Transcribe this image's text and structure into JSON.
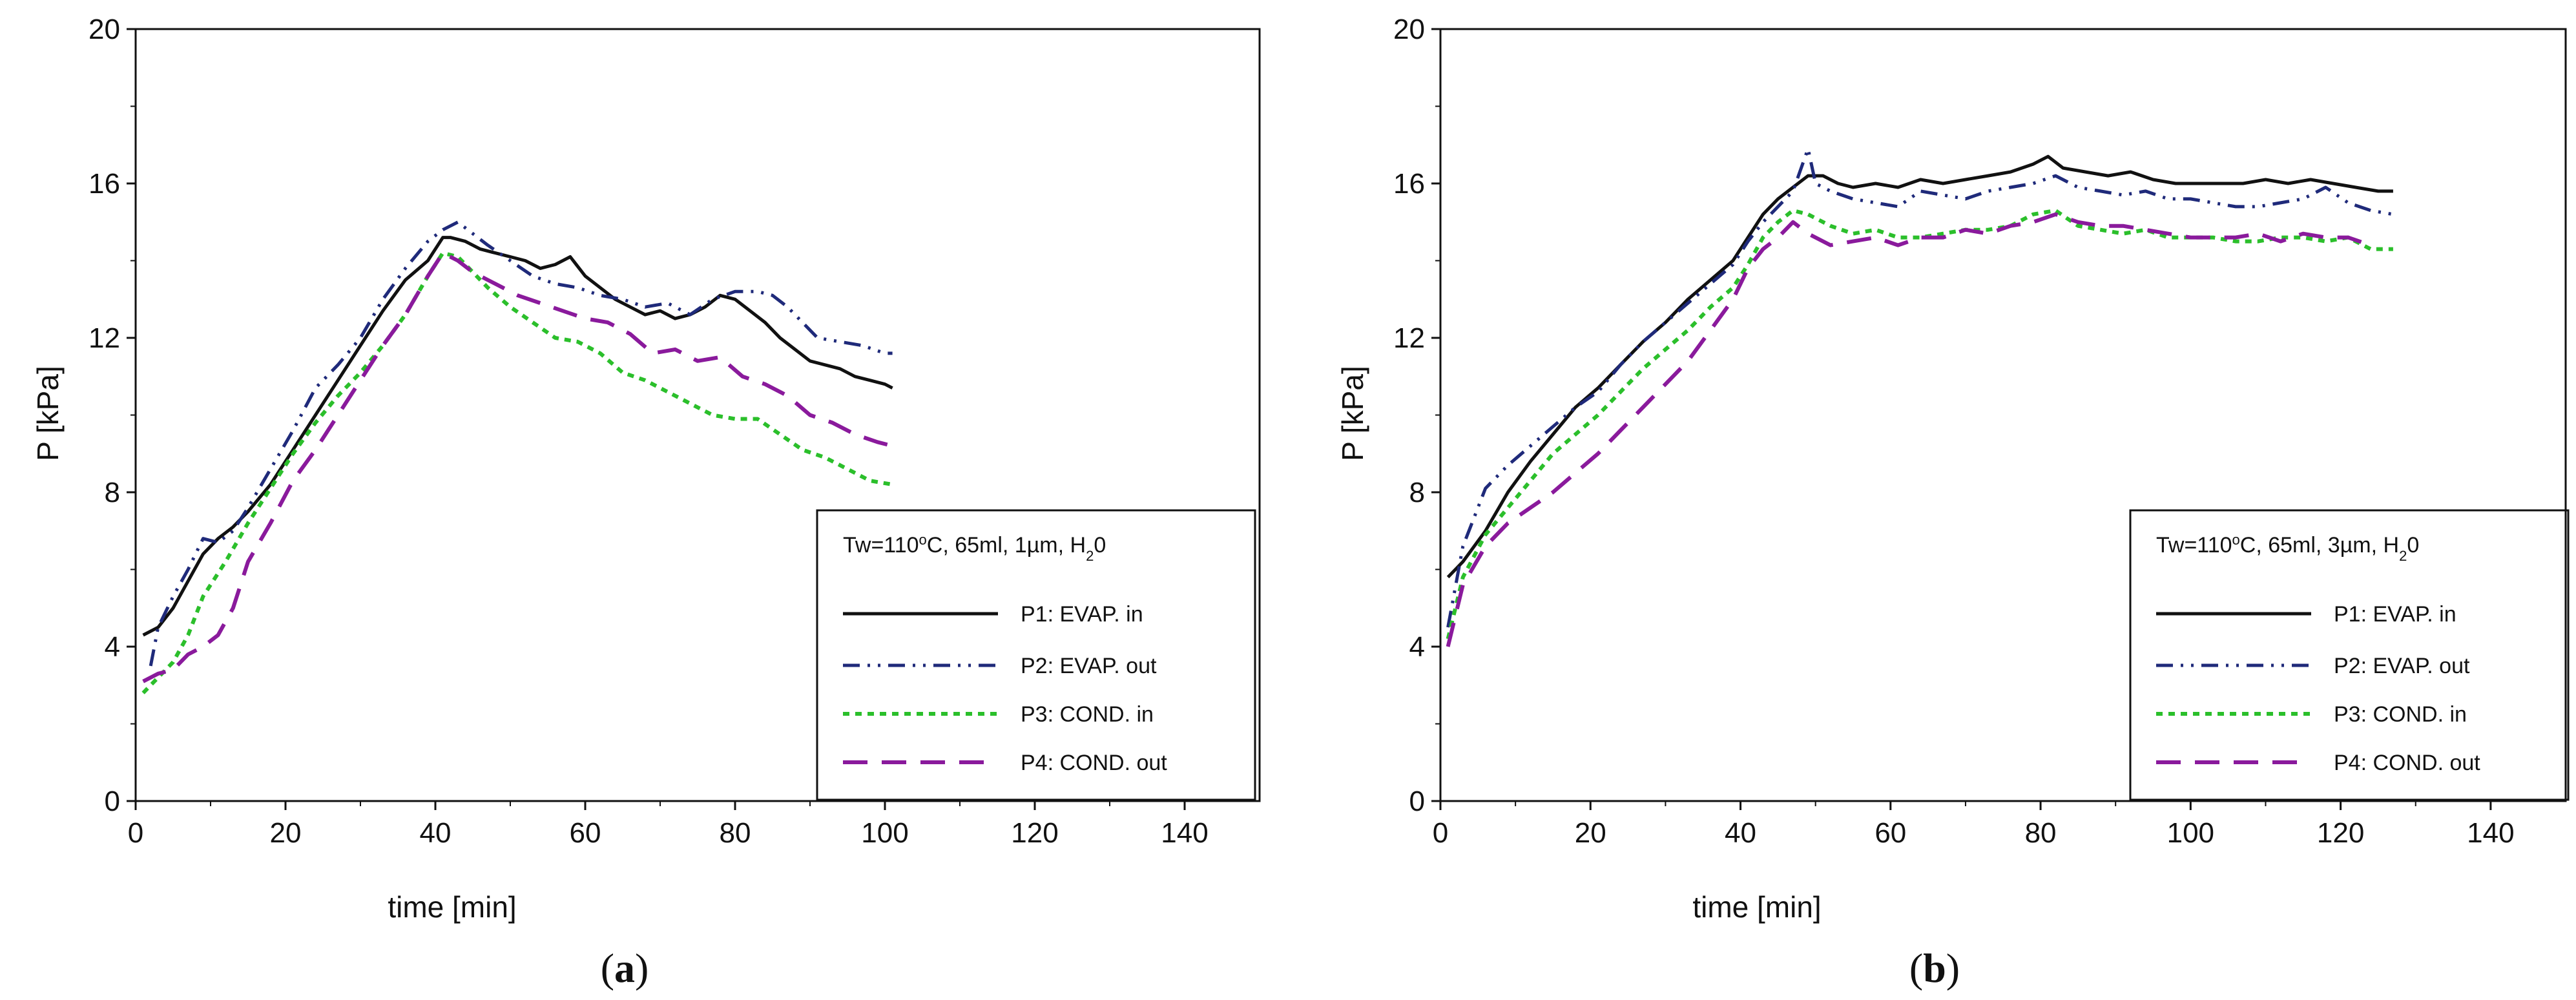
{
  "colors": {
    "P1": "#111111",
    "P2": "#1f2a7a",
    "P3": "#2bbf2b",
    "P4": "#8a1a9c",
    "axis": "#111111",
    "background": "#ffffff"
  },
  "chart_data": [
    {
      "type": "line",
      "panel_letter": "a",
      "caption_open": "(",
      "caption_close": ")",
      "xlabel": "time [min]",
      "ylabel": "P [kPa]",
      "xlim": [
        0,
        150
      ],
      "ylim": [
        0,
        20
      ],
      "xticks": [
        0,
        20,
        40,
        60,
        80,
        100,
        120,
        140
      ],
      "yticks": [
        0,
        4,
        8,
        12,
        16,
        20
      ],
      "grid": false,
      "legend_position": "bottom-right",
      "legend_title": {
        "main": "Tw=110",
        "sup": "o",
        "mid": "C, 65ml, 1µm, H",
        "sub": "2",
        "end": "0"
      },
      "series": [
        {
          "key": "P1",
          "name": "P1: EVAP. in",
          "x": [
            1,
            3,
            5,
            7,
            9,
            11,
            13,
            15,
            18,
            21,
            24,
            27,
            30,
            33,
            36,
            39,
            41,
            42,
            44,
            46,
            48,
            50,
            52,
            54,
            56,
            58,
            60,
            62,
            64,
            66,
            68,
            70,
            72,
            74,
            76,
            78,
            80,
            82,
            84,
            86,
            88,
            90,
            92,
            94,
            96,
            98,
            100,
            101
          ],
          "values": [
            4.3,
            4.5,
            5.0,
            5.7,
            6.4,
            6.8,
            7.1,
            7.5,
            8.2,
            9.1,
            10.0,
            10.9,
            11.8,
            12.7,
            13.5,
            14.0,
            14.6,
            14.6,
            14.5,
            14.3,
            14.2,
            14.1,
            14.0,
            13.8,
            13.9,
            14.1,
            13.6,
            13.3,
            13.0,
            12.8,
            12.6,
            12.7,
            12.5,
            12.6,
            12.8,
            13.1,
            13.0,
            12.7,
            12.4,
            12.0,
            11.7,
            11.4,
            11.3,
            11.2,
            11.0,
            10.9,
            10.8,
            10.7
          ]
        },
        {
          "key": "P2",
          "name": "P2: EVAP. out",
          "x": [
            2,
            3,
            5,
            7,
            9,
            11,
            13,
            15,
            18,
            21,
            24,
            27,
            30,
            33,
            36,
            39,
            41,
            43,
            45,
            47,
            50,
            53,
            56,
            59,
            62,
            65,
            68,
            71,
            74,
            77,
            80,
            83,
            85,
            87,
            89,
            91,
            94,
            97,
            100,
            101
          ],
          "values": [
            3.5,
            4.5,
            5.3,
            6.0,
            6.8,
            6.7,
            7.0,
            7.6,
            8.6,
            9.6,
            10.7,
            11.3,
            12.0,
            13.0,
            13.8,
            14.5,
            14.8,
            15.0,
            14.7,
            14.4,
            14.0,
            13.6,
            13.4,
            13.3,
            13.1,
            13.0,
            12.8,
            12.9,
            12.6,
            13.0,
            13.2,
            13.2,
            13.1,
            12.8,
            12.4,
            12.0,
            11.9,
            11.8,
            11.6,
            11.6
          ]
        },
        {
          "key": "P3",
          "name": "P3: COND. in",
          "x": [
            1,
            3,
            5,
            7,
            9,
            12,
            15,
            18,
            21,
            24,
            27,
            30,
            33,
            36,
            39,
            41,
            43,
            45,
            47,
            50,
            53,
            56,
            59,
            62,
            65,
            68,
            71,
            74,
            77,
            80,
            83,
            86,
            89,
            92,
            95,
            98,
            101
          ],
          "values": [
            2.8,
            3.2,
            3.6,
            4.3,
            5.3,
            6.2,
            7.2,
            8.1,
            9.0,
            9.8,
            10.5,
            11.1,
            11.8,
            12.6,
            13.6,
            14.2,
            14.1,
            13.7,
            13.3,
            12.8,
            12.4,
            12.0,
            11.9,
            11.6,
            11.1,
            10.9,
            10.6,
            10.3,
            10.0,
            9.9,
            9.9,
            9.5,
            9.1,
            8.9,
            8.6,
            8.3,
            8.2
          ]
        },
        {
          "key": "P4",
          "name": "P4: COND. out",
          "x": [
            1,
            3,
            5,
            7,
            9,
            11,
            13,
            15,
            18,
            21,
            24,
            27,
            30,
            33,
            36,
            39,
            41,
            43,
            45,
            48,
            51,
            54,
            57,
            60,
            63,
            66,
            69,
            72,
            75,
            78,
            81,
            84,
            87,
            90,
            93,
            96,
            99,
            101
          ],
          "values": [
            3.1,
            3.3,
            3.4,
            3.8,
            4.0,
            4.3,
            5.0,
            6.2,
            7.2,
            8.3,
            9.1,
            10.0,
            10.9,
            11.8,
            12.6,
            13.6,
            14.2,
            14.0,
            13.7,
            13.4,
            13.1,
            12.9,
            12.7,
            12.5,
            12.4,
            12.1,
            11.6,
            11.7,
            11.4,
            11.5,
            11.0,
            10.8,
            10.5,
            10.0,
            9.8,
            9.5,
            9.3,
            9.2
          ]
        }
      ]
    },
    {
      "type": "line",
      "panel_letter": "b",
      "caption_open": "(",
      "caption_close": ")",
      "xlabel": "time [min]",
      "ylabel": "P [kPa]",
      "xlim": [
        0,
        150
      ],
      "ylim": [
        0,
        20
      ],
      "xticks": [
        0,
        20,
        40,
        60,
        80,
        100,
        120,
        140
      ],
      "yticks": [
        0,
        4,
        8,
        12,
        16,
        20
      ],
      "grid": false,
      "legend_position": "bottom-right",
      "legend_title": {
        "main": "Tw=110",
        "sup": "o",
        "mid": "C, 65ml, 3µm, H",
        "sub": "2",
        "end": "0"
      },
      "series": [
        {
          "key": "P1",
          "name": "P1: EVAP. in",
          "x": [
            1,
            3,
            6,
            9,
            12,
            15,
            18,
            21,
            24,
            27,
            30,
            33,
            36,
            39,
            41,
            43,
            45,
            47,
            49,
            51,
            53,
            55,
            58,
            61,
            64,
            67,
            70,
            73,
            76,
            79,
            81,
            83,
            86,
            89,
            92,
            95,
            98,
            101,
            104,
            107,
            110,
            113,
            116,
            119,
            122,
            125,
            127
          ],
          "values": [
            5.8,
            6.2,
            7.0,
            8.0,
            8.8,
            9.5,
            10.2,
            10.7,
            11.3,
            11.9,
            12.4,
            13.0,
            13.5,
            14.0,
            14.6,
            15.2,
            15.6,
            15.9,
            16.2,
            16.2,
            16.0,
            15.9,
            16.0,
            15.9,
            16.1,
            16.0,
            16.1,
            16.2,
            16.3,
            16.5,
            16.7,
            16.4,
            16.3,
            16.2,
            16.3,
            16.1,
            16.0,
            16.0,
            16.0,
            16.0,
            16.1,
            16.0,
            16.1,
            16.0,
            15.9,
            15.8,
            15.8
          ]
        },
        {
          "key": "P2",
          "name": "P2: EVAP. out",
          "x": [
            1,
            3,
            6,
            9,
            12,
            15,
            18,
            21,
            24,
            27,
            30,
            33,
            36,
            39,
            41,
            43,
            45,
            47,
            49,
            50,
            52,
            55,
            58,
            61,
            64,
            67,
            70,
            73,
            76,
            79,
            82,
            85,
            88,
            91,
            94,
            97,
            100,
            103,
            106,
            109,
            112,
            115,
            118,
            121,
            124,
            127
          ],
          "values": [
            4.5,
            6.6,
            8.1,
            8.7,
            9.2,
            9.7,
            10.2,
            10.6,
            11.3,
            11.9,
            12.4,
            12.9,
            13.4,
            13.9,
            14.5,
            15.0,
            15.4,
            15.8,
            16.9,
            16.0,
            15.8,
            15.6,
            15.5,
            15.4,
            15.8,
            15.7,
            15.6,
            15.8,
            15.9,
            16.0,
            16.2,
            15.9,
            15.8,
            15.7,
            15.8,
            15.6,
            15.6,
            15.5,
            15.4,
            15.4,
            15.5,
            15.6,
            15.9,
            15.5,
            15.3,
            15.2
          ]
        },
        {
          "key": "P3",
          "name": "P3: COND. in",
          "x": [
            1,
            3,
            6,
            9,
            12,
            15,
            18,
            21,
            24,
            27,
            30,
            33,
            36,
            39,
            41,
            43,
            45,
            47,
            49,
            52,
            55,
            58,
            61,
            64,
            67,
            70,
            73,
            76,
            79,
            82,
            85,
            88,
            91,
            94,
            97,
            100,
            103,
            106,
            109,
            112,
            115,
            118,
            121,
            124,
            127
          ],
          "values": [
            4.2,
            5.8,
            6.9,
            7.6,
            8.3,
            9.0,
            9.5,
            10.0,
            10.6,
            11.2,
            11.7,
            12.2,
            12.8,
            13.3,
            13.9,
            14.6,
            15.0,
            15.3,
            15.2,
            14.9,
            14.7,
            14.8,
            14.6,
            14.6,
            14.7,
            14.8,
            14.8,
            14.9,
            15.2,
            15.3,
            14.9,
            14.8,
            14.7,
            14.8,
            14.6,
            14.6,
            14.6,
            14.5,
            14.5,
            14.6,
            14.6,
            14.5,
            14.6,
            14.3,
            14.3
          ]
        },
        {
          "key": "P4",
          "name": "P4: COND. out",
          "x": [
            1,
            3,
            6,
            9,
            12,
            15,
            18,
            21,
            24,
            27,
            30,
            33,
            36,
            39,
            41,
            43,
            45,
            47,
            49,
            52,
            55,
            58,
            61,
            64,
            67,
            70,
            73,
            76,
            79,
            82,
            85,
            88,
            91,
            94,
            97,
            100,
            103,
            106,
            109,
            112,
            115,
            118,
            121,
            124
          ],
          "values": [
            4.0,
            5.6,
            6.6,
            7.2,
            7.6,
            8.0,
            8.5,
            9.0,
            9.6,
            10.2,
            10.8,
            11.4,
            12.2,
            13.0,
            13.8,
            14.3,
            14.6,
            15.0,
            14.7,
            14.4,
            14.5,
            14.6,
            14.4,
            14.6,
            14.6,
            14.8,
            14.7,
            14.9,
            15.0,
            15.2,
            15.0,
            14.9,
            14.9,
            14.8,
            14.7,
            14.6,
            14.6,
            14.6,
            14.7,
            14.5,
            14.7,
            14.6,
            14.6,
            14.4
          ]
        }
      ]
    }
  ]
}
